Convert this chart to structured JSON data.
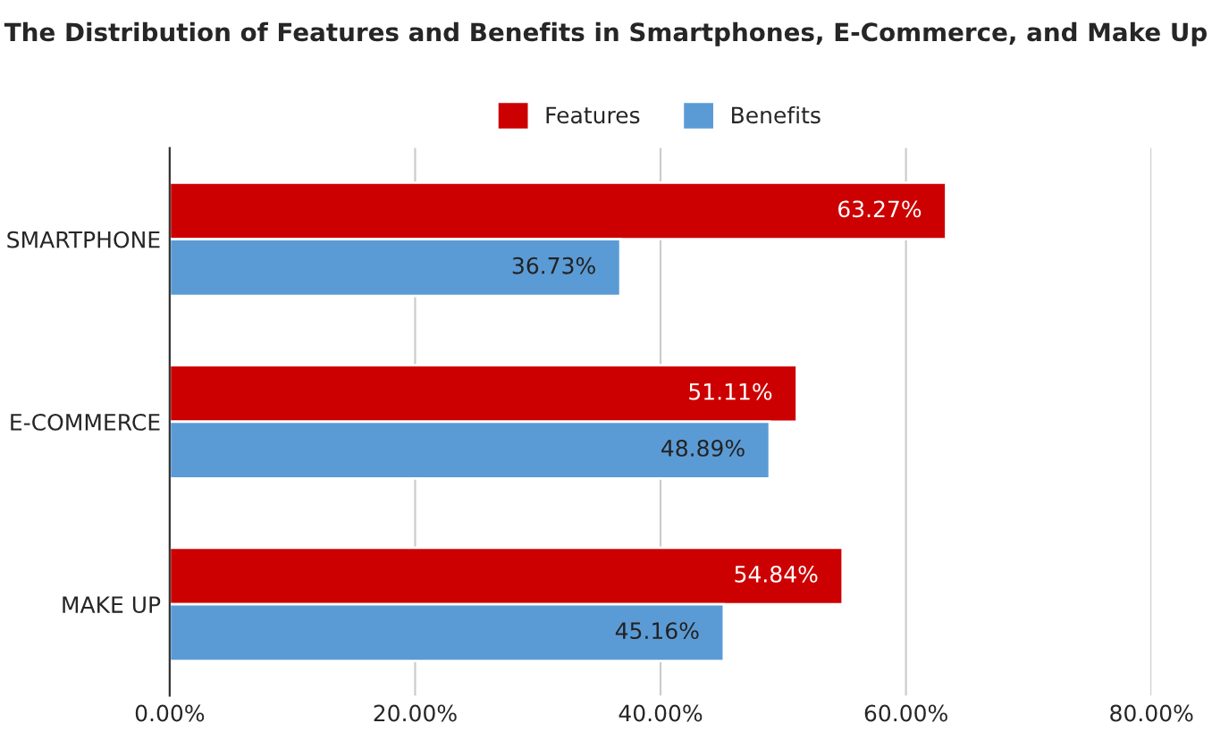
{
  "chart_data": {
    "type": "bar",
    "orientation": "horizontal",
    "title": "The Distribution of Features and Benefits in Smartphones, E-Commerce, and Make Up",
    "categories": [
      "SMARTPHONE",
      "E-COMMERCE",
      "MAKE UP"
    ],
    "series": [
      {
        "name": "Features",
        "color": "#cc0000",
        "values": [
          63.27,
          51.11,
          54.84
        ],
        "value_labels": [
          "63.27%",
          "51.11%",
          "54.84%"
        ]
      },
      {
        "name": "Benefits",
        "color": "#5b9bd5",
        "values": [
          36.73,
          48.89,
          45.16
        ],
        "value_labels": [
          "36.73%",
          "48.89%",
          "45.16%"
        ]
      }
    ],
    "xlim": [
      0,
      80
    ],
    "xticks": [
      {
        "value": 0,
        "label": "0.00%"
      },
      {
        "value": 20,
        "label": "20.00%"
      },
      {
        "value": 40,
        "label": "40.00%"
      },
      {
        "value": 60,
        "label": "60.00%"
      },
      {
        "value": 80,
        "label": "80.00%"
      }
    ],
    "grid": "x",
    "legend": "top"
  }
}
